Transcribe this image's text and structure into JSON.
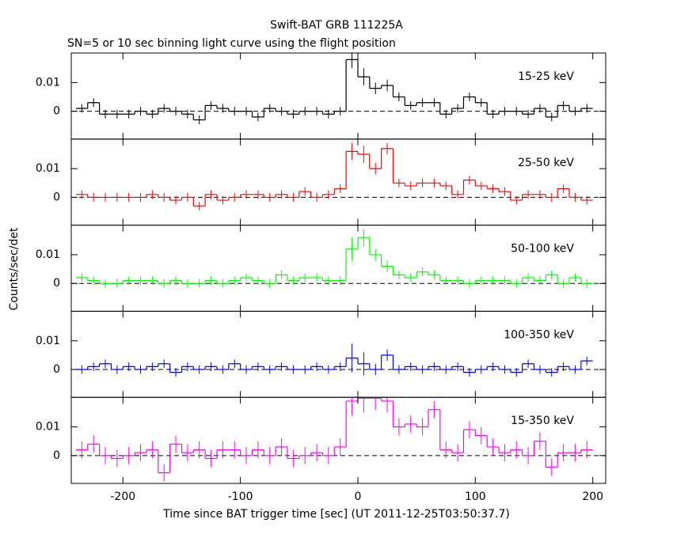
{
  "chart_data": {
    "type": "step",
    "title": "Swift-BAT GRB 111225A",
    "subtitle": "SN=5 or 10 sec binning light curve using the flight position",
    "xlabel": "Time since BAT trigger time [sec] (UT 2011-12-25T03:50:37.7)",
    "ylabel": "Counts/sec/det",
    "xlim": [
      -244,
      211
    ],
    "xticks": [
      -200,
      -100,
      0,
      100,
      200
    ],
    "ylim": [
      -0.0097,
      0.0203
    ],
    "yticks": [
      0,
      0.01
    ],
    "x": [
      -235,
      -225,
      -215,
      -205,
      -195,
      -185,
      -175,
      -165,
      -155,
      -145,
      -135,
      -125,
      -115,
      -105,
      -95,
      -85,
      -75,
      -65,
      -55,
      -45,
      -35,
      -25,
      -15,
      -5,
      5,
      15,
      25,
      35,
      45,
      55,
      65,
      75,
      85,
      95,
      105,
      115,
      125,
      135,
      145,
      155,
      165,
      175,
      185,
      195
    ],
    "series": [
      {
        "name": "15-25 keV",
        "color": "#000000",
        "values": [
          0.001,
          0.003,
          -0.001,
          -0.001,
          -0.001,
          0.0,
          -0.001,
          0.001,
          0.0,
          -0.001,
          -0.003,
          0.002,
          0.001,
          0.0,
          0.0,
          -0.002,
          0.001,
          0.0,
          -0.001,
          0.0,
          0.0,
          -0.001,
          0.0,
          0.018,
          0.012,
          0.008,
          0.009,
          0.005,
          0.002,
          0.003,
          0.003,
          -0.001,
          0.001,
          0.005,
          0.003,
          -0.001,
          0.0,
          0.0,
          -0.001,
          0.001,
          -0.002,
          0.002,
          0.0,
          0.001
        ],
        "errors": [
          0.0015,
          0.0015,
          0.0015,
          0.0015,
          0.0015,
          0.0015,
          0.0015,
          0.0015,
          0.0015,
          0.0015,
          0.0015,
          0.0015,
          0.0015,
          0.0015,
          0.0015,
          0.0015,
          0.0015,
          0.0015,
          0.0015,
          0.0015,
          0.0015,
          0.0015,
          0.0015,
          0.003,
          0.003,
          0.002,
          0.002,
          0.0015,
          0.0015,
          0.0015,
          0.0015,
          0.0015,
          0.0015,
          0.0015,
          0.0015,
          0.0015,
          0.0015,
          0.0015,
          0.0015,
          0.0015,
          0.0015,
          0.0015,
          0.0015,
          0.0015
        ]
      },
      {
        "name": "25-50 keV",
        "color": "#ff0000",
        "values": [
          0.001,
          0.0,
          0.0,
          0.0,
          0.0,
          0.0,
          0.001,
          0.0,
          -0.001,
          0.0,
          -0.003,
          0.001,
          -0.001,
          0.0,
          0.001,
          0.001,
          0.0,
          0.001,
          0.0,
          0.002,
          0.0,
          0.001,
          0.003,
          0.016,
          0.015,
          0.01,
          0.017,
          0.005,
          0.004,
          0.005,
          0.005,
          0.004,
          0.001,
          0.006,
          0.004,
          0.003,
          0.002,
          -0.001,
          0.001,
          0.001,
          0.0,
          0.003,
          0.0,
          -0.001
        ],
        "errors": [
          0.0015,
          0.0015,
          0.0015,
          0.0015,
          0.0015,
          0.0015,
          0.0015,
          0.0015,
          0.0015,
          0.0015,
          0.0015,
          0.0015,
          0.0015,
          0.0015,
          0.0015,
          0.0015,
          0.0015,
          0.0015,
          0.0015,
          0.0015,
          0.0015,
          0.0015,
          0.0015,
          0.003,
          0.003,
          0.002,
          0.002,
          0.0015,
          0.0015,
          0.0015,
          0.0015,
          0.0015,
          0.0015,
          0.0015,
          0.0015,
          0.0015,
          0.0015,
          0.0015,
          0.0015,
          0.0015,
          0.0015,
          0.0015,
          0.0015,
          0.0015
        ]
      },
      {
        "name": "50-100 keV",
        "color": "#00ff00",
        "values": [
          0.002,
          0.001,
          0.0,
          0.0,
          0.001,
          0.001,
          0.001,
          0.0,
          0.001,
          0.0,
          0.0,
          0.001,
          0.0,
          0.001,
          0.002,
          0.001,
          0.0,
          0.003,
          0.001,
          0.002,
          0.002,
          0.001,
          0.001,
          0.012,
          0.016,
          0.01,
          0.006,
          0.003,
          0.002,
          0.004,
          0.003,
          0.001,
          0.001,
          0.0,
          0.001,
          0.001,
          0.001,
          0.0,
          0.002,
          0.001,
          0.003,
          0.0,
          0.002,
          0.0
        ],
        "errors": [
          0.0015,
          0.0015,
          0.0015,
          0.0015,
          0.0015,
          0.0015,
          0.0015,
          0.0015,
          0.0015,
          0.0015,
          0.0015,
          0.0015,
          0.0015,
          0.0015,
          0.0015,
          0.0015,
          0.0015,
          0.0015,
          0.0015,
          0.0015,
          0.0015,
          0.0015,
          0.0015,
          0.004,
          0.003,
          0.002,
          0.002,
          0.0015,
          0.0015,
          0.0015,
          0.0015,
          0.0015,
          0.0015,
          0.0015,
          0.0015,
          0.0015,
          0.0015,
          0.0015,
          0.0015,
          0.0015,
          0.0015,
          0.0015,
          0.0015,
          0.0015
        ]
      },
      {
        "name": "100-350 keV",
        "color": "#0000ff",
        "values": [
          0.0,
          0.001,
          0.002,
          0.0,
          0.001,
          0.0,
          0.001,
          0.002,
          -0.001,
          0.001,
          0.0,
          0.001,
          0.0,
          0.002,
          0.0,
          0.001,
          0.0,
          0.001,
          0.0,
          0.0,
          0.001,
          0.0,
          0.001,
          0.004,
          0.002,
          0.0,
          0.005,
          0.0,
          0.001,
          0.0,
          0.001,
          0.0,
          0.001,
          -0.001,
          0.0,
          0.001,
          0.0,
          -0.001,
          0.002,
          0.0,
          -0.001,
          0.001,
          0.0,
          0.003
        ],
        "errors": [
          0.0015,
          0.0015,
          0.0015,
          0.0015,
          0.0015,
          0.0015,
          0.0015,
          0.0015,
          0.0015,
          0.0015,
          0.0015,
          0.0015,
          0.0015,
          0.0015,
          0.0015,
          0.0015,
          0.0015,
          0.0015,
          0.0015,
          0.0015,
          0.0015,
          0.0015,
          0.0015,
          0.005,
          0.004,
          0.002,
          0.002,
          0.0015,
          0.0015,
          0.0015,
          0.0015,
          0.0015,
          0.0015,
          0.0015,
          0.0015,
          0.0015,
          0.0015,
          0.0015,
          0.0015,
          0.0015,
          0.0015,
          0.0015,
          0.0015,
          0.0015
        ]
      },
      {
        "name": "15-350 keV",
        "color": "#ff00ff",
        "values": [
          0.002,
          0.004,
          0.0,
          -0.001,
          0.0,
          0.001,
          0.002,
          -0.006,
          0.004,
          0.001,
          0.002,
          -0.001,
          0.002,
          0.002,
          0.0,
          0.002,
          0.0,
          0.003,
          -0.001,
          0.0,
          0.001,
          0.0,
          0.003,
          0.019,
          0.02,
          0.02,
          0.019,
          0.01,
          0.011,
          0.01,
          0.016,
          0.002,
          0.001,
          0.009,
          0.007,
          0.003,
          0.001,
          0.002,
          0.0,
          0.005,
          -0.004,
          0.001,
          0.001,
          0.002
        ],
        "errors": [
          0.003,
          0.003,
          0.003,
          0.003,
          0.003,
          0.003,
          0.003,
          0.003,
          0.003,
          0.003,
          0.003,
          0.003,
          0.003,
          0.003,
          0.003,
          0.003,
          0.003,
          0.003,
          0.003,
          0.003,
          0.003,
          0.003,
          0.003,
          0.005,
          0.005,
          0.004,
          0.004,
          0.003,
          0.003,
          0.003,
          0.003,
          0.003,
          0.003,
          0.003,
          0.003,
          0.003,
          0.003,
          0.003,
          0.003,
          0.003,
          0.003,
          0.003,
          0.003,
          0.003
        ]
      }
    ]
  }
}
